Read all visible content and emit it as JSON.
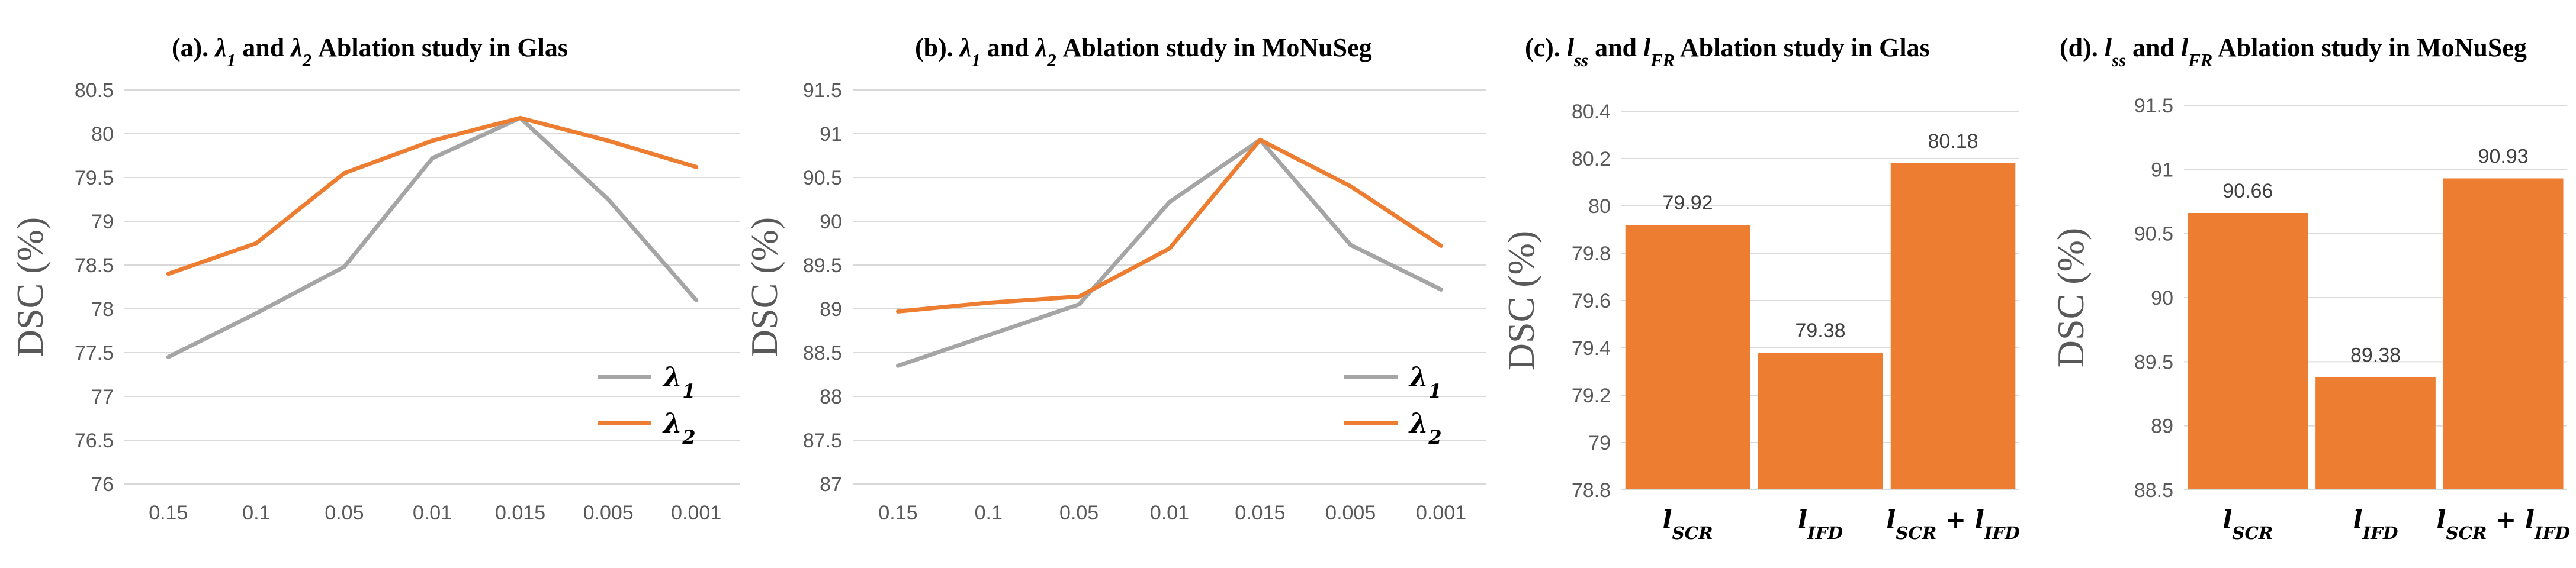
{
  "colors": {
    "lambda1": "#a5a5a5",
    "lambda2": "#ed7d31",
    "bar": "#ed7d31",
    "grid": "#d9d9d9"
  },
  "chart_data": [
    {
      "type": "line",
      "title": "(a).  λ1 and λ2 Ablation study in Glas",
      "ylabel": "DSC (%)",
      "categories": [
        "0.15",
        "0.1",
        "0.05",
        "0.01",
        "0.015",
        "0.005",
        "0.001"
      ],
      "yticks": [
        "76",
        "76.5",
        "77",
        "77.5",
        "78",
        "78.5",
        "79",
        "79.5",
        "80",
        "80.5"
      ],
      "ylim": [
        76,
        80.5
      ],
      "grid": true,
      "legend": "bottom-right",
      "series": [
        {
          "name": "λ1",
          "values": [
            77.45,
            77.95,
            78.48,
            79.72,
            80.18,
            79.25,
            78.1
          ]
        },
        {
          "name": "λ2",
          "values": [
            78.4,
            78.75,
            79.55,
            79.92,
            80.18,
            79.92,
            79.62
          ]
        }
      ]
    },
    {
      "type": "line",
      "title": "(b).  λ1 and λ2 Ablation study in MoNuSeg",
      "ylabel": "DSC (%)",
      "categories": [
        "0.15",
        "0.1",
        "0.05",
        "0.01",
        "0.015",
        "0.005",
        "0.001"
      ],
      "yticks": [
        "87",
        "87.5",
        "88",
        "88.5",
        "89",
        "89.5",
        "90",
        "90.5",
        "91",
        "91.5"
      ],
      "ylim": [
        87,
        91.5
      ],
      "grid": true,
      "legend": "bottom-right",
      "series": [
        {
          "name": "λ1",
          "values": [
            88.35,
            88.7,
            89.05,
            90.22,
            90.93,
            89.73,
            89.22
          ]
        },
        {
          "name": "λ2",
          "values": [
            88.97,
            89.07,
            89.14,
            89.69,
            90.93,
            90.4,
            89.72
          ]
        }
      ]
    },
    {
      "type": "bar",
      "title": "(c).  lss  and  lFR Ablation study in Glas",
      "ylabel": "DSC (%)",
      "categories": [
        "lSCR",
        "lIFD",
        "lSCR + lIFD"
      ],
      "values": [
        79.92,
        79.38,
        80.18
      ],
      "data_labels": [
        "79.92",
        "79.38",
        "80.18"
      ],
      "yticks": [
        "78.8",
        "79",
        "79.2",
        "79.4",
        "79.6",
        "79.8",
        "80",
        "80.2",
        "80.4"
      ],
      "ylim": [
        78.8,
        80.4
      ],
      "grid": true
    },
    {
      "type": "bar",
      "title": "(d).  lss  and  lFR Ablation study in MoNuSeg",
      "ylabel": "DSC (%)",
      "categories": [
        "lSCR",
        "lIFD",
        "lSCR + lIFD"
      ],
      "values": [
        90.66,
        89.38,
        90.93
      ],
      "data_labels": [
        "90.66",
        "89.38",
        "90.93"
      ],
      "yticks": [
        "88.5",
        "89",
        "89.5",
        "90",
        "90.5",
        "91",
        "91.5"
      ],
      "ylim": [
        88.5,
        91.5
      ],
      "grid": true
    }
  ]
}
